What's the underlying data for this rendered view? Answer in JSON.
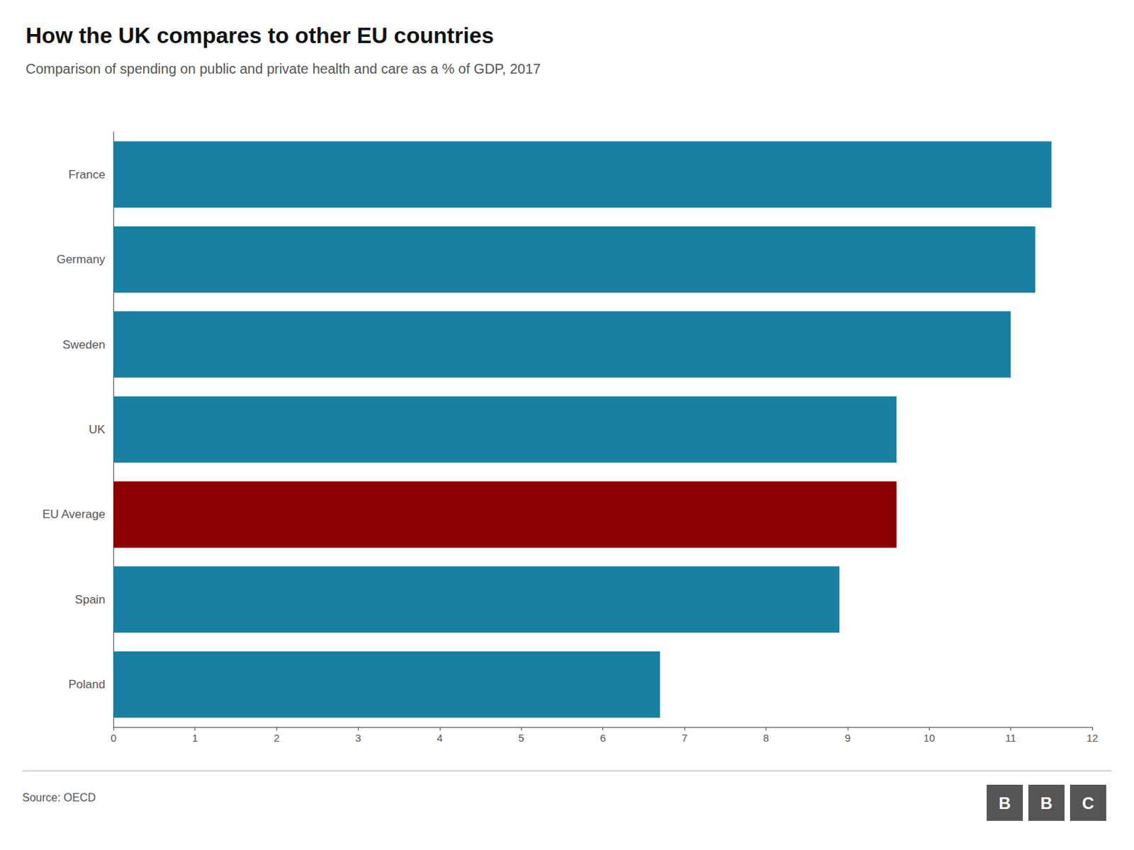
{
  "chart_data": {
    "type": "bar",
    "title": "How the UK compares to other EU countries",
    "subtitle": "Comparison of spending on public and private health and care as a % of GDP, 2017",
    "source": "Source: OECD",
    "logo": "BBC",
    "orientation": "horizontal",
    "categories": [
      "France",
      "Germany",
      "Sweden",
      "UK",
      "EU Average",
      "Spain",
      "Poland"
    ],
    "values": [
      11.5,
      11.3,
      11.0,
      9.6,
      9.6,
      8.9,
      6.7
    ],
    "colors": [
      "#1a7fa0",
      "#1a7fa0",
      "#1a7fa0",
      "#1a7fa0",
      "#8b0000",
      "#1a7fa0",
      "#1a7fa0"
    ],
    "xlim": [
      0,
      12
    ],
    "xticks": [
      0,
      1,
      2,
      3,
      4,
      5,
      6,
      7,
      8,
      9,
      10,
      11,
      12
    ],
    "grid": false
  }
}
